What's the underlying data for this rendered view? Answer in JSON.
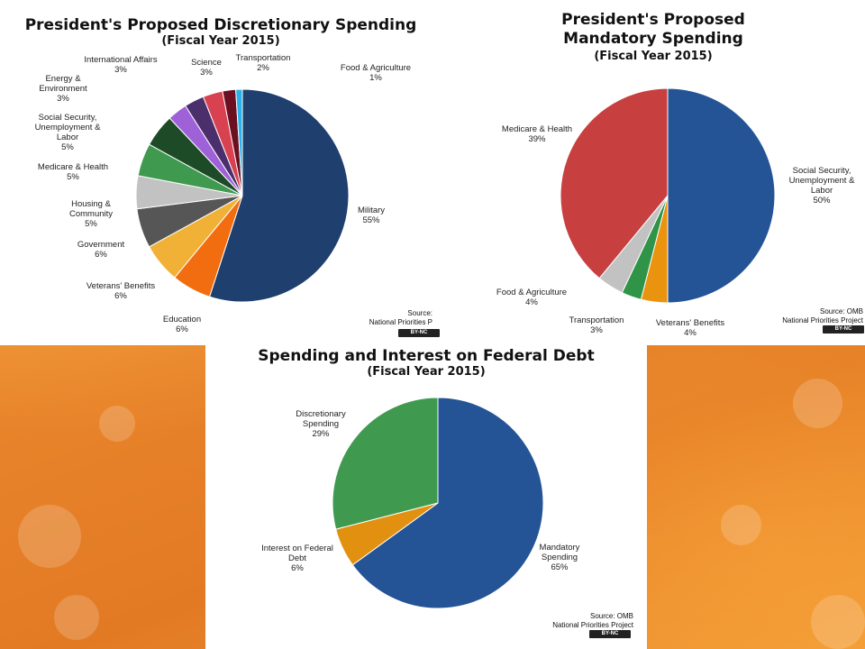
{
  "colors": {
    "dark_navy": "#1f3f6e",
    "orange": "#f26d0f",
    "amber": "#f0b136",
    "dark_gray": "#565656",
    "light_gray": "#c2c2c2",
    "green": "#3f9a4f",
    "dark_green": "#1e4b27",
    "violet": "#9e61d8",
    "purple": "#4a2f6c",
    "red": "#d84150",
    "maroon": "#6b1020",
    "sky_blue": "#2ab3ea",
    "blue": "#255496",
    "medicare_red": "#c7403f",
    "mandatory_orange": "#e9930f",
    "slice_green": "#2f9447",
    "fed_orange": "#e2900f"
  },
  "charts": {
    "discretionary": {
      "title": "President's Proposed Discretionary Spending",
      "subtitle": "(Fiscal Year 2015)",
      "source_line1": "Source:",
      "source_line2": "National Priorities P",
      "cc_label": "BY-NC"
    },
    "mandatory": {
      "title_line1": "President's Proposed",
      "title_line2": "Mandatory Spending",
      "subtitle": "(Fiscal Year 2015)",
      "source_line1": "Source: OMB",
      "source_line2": "National Priorities Project",
      "cc_label": "BY-NC"
    },
    "debt": {
      "title": "Spending and Interest on Federal Debt",
      "subtitle": "(Fiscal Year 2015)",
      "source_line1": "Source: OMB",
      "source_line2": "National Priorities Project",
      "cc_label": "BY-NC"
    }
  },
  "chart_data": [
    {
      "type": "pie",
      "title": "President's Proposed Discretionary Spending",
      "subtitle": "(Fiscal Year 2015)",
      "slices": [
        {
          "label": [
            "Military",
            "55%"
          ],
          "value": 55,
          "color": "#1f3f6e"
        },
        {
          "label": [
            "Education",
            "6%"
          ],
          "value": 6,
          "color": "#f26d0f"
        },
        {
          "label": [
            "Veterans'  Benefits",
            "6%"
          ],
          "value": 6,
          "color": "#f0b136"
        },
        {
          "label": [
            "Government",
            "6%"
          ],
          "value": 6,
          "color": "#565656"
        },
        {
          "label": [
            "Housing  &",
            "Community",
            "5%"
          ],
          "value": 5,
          "color": "#c2c2c2"
        },
        {
          "label": [
            "Medicare  & Health",
            "5%"
          ],
          "value": 5,
          "color": "#3f9a4f"
        },
        {
          "label": [
            "Social Security,",
            "Unemployment  &",
            "Labor",
            "5%"
          ],
          "value": 5,
          "color": "#1e4b27"
        },
        {
          "label": [
            "Energy  &",
            "Environment",
            "3%"
          ],
          "value": 3,
          "color": "#9e61d8"
        },
        {
          "label": [
            "International  Affairs",
            "3%"
          ],
          "value": 3,
          "color": "#4a2f6c"
        },
        {
          "label": [
            "Science",
            "3%"
          ],
          "value": 3,
          "color": "#d84150"
        },
        {
          "label": [
            "Transportation",
            "2%"
          ],
          "value": 2,
          "color": "#6b1020"
        },
        {
          "label": [
            "Food & Agriculture",
            "1%"
          ],
          "value": 1,
          "color": "#2ab3ea"
        }
      ]
    },
    {
      "type": "pie",
      "title": "President's Proposed Mandatory Spending",
      "subtitle": "(Fiscal Year 2015)",
      "slices": [
        {
          "label": [
            "Social Security,",
            "Unemployment  &",
            "Labor",
            "50%"
          ],
          "value": 50,
          "color": "#255496"
        },
        {
          "label": [
            "Veterans'  Benefits",
            "4%"
          ],
          "value": 4,
          "color": "#e9930f"
        },
        {
          "label": [
            "Transportation",
            "3%"
          ],
          "value": 3,
          "color": "#2f9447"
        },
        {
          "label": [
            "Food & Agriculture",
            "4%"
          ],
          "value": 4,
          "color": "#c2c2c2"
        },
        {
          "label": [
            "Medicare  & Health",
            "39%"
          ],
          "value": 39,
          "color": "#c7403f"
        }
      ]
    },
    {
      "type": "pie",
      "title": "Spending and Interest on Federal Debt",
      "subtitle": "(Fiscal Year 2015)",
      "slices": [
        {
          "label": [
            "Mandatory",
            "Spending",
            "65%"
          ],
          "value": 65,
          "color": "#255496"
        },
        {
          "label": [
            "Interest  on Federal",
            "Debt",
            "6%"
          ],
          "value": 6,
          "color": "#e2900f"
        },
        {
          "label": [
            "Discretionary",
            "Spending",
            "29%"
          ],
          "value": 29,
          "color": "#3f9a4f"
        }
      ]
    }
  ]
}
